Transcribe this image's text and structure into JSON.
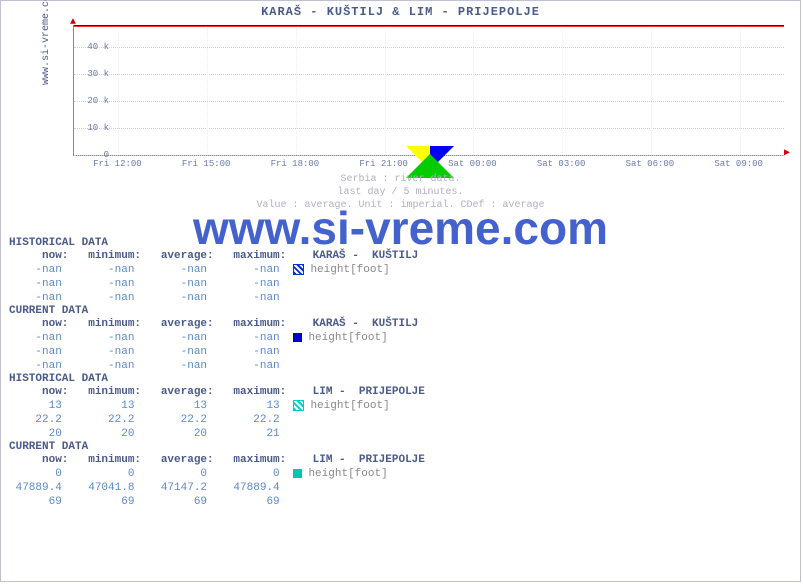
{
  "title": "KARAŠ -  KUŠTILJ &  LIM -  PRIJEPOLJE",
  "ylabel": "www.si-vreme.com",
  "watermark": "www.si-vreme.com",
  "chart": {
    "type": "line",
    "ylim": [
      0,
      48000
    ],
    "yticks": [
      {
        "v": 0,
        "label": "0"
      },
      {
        "v": 10000,
        "label": "10 k"
      },
      {
        "v": 20000,
        "label": "20 k"
      },
      {
        "v": 30000,
        "label": "30 k"
      },
      {
        "v": 40000,
        "label": "40 k"
      }
    ],
    "xticks": [
      "Fri 12:00",
      "Fri 15:00",
      "Fri 18:00",
      "Fri 21:00",
      "Sat 00:00",
      "Sat 03:00",
      "Sat 06:00",
      "Sat 09:00"
    ],
    "series": [
      {
        "name": "KARAŠ - KUŠTILJ",
        "color": "#0000ff",
        "y": 47889
      },
      {
        "name": "LIM - PRIJEPOLJE",
        "color": "#ff3333",
        "y": 47889
      }
    ],
    "grid_color": "#d0d0d0",
    "background_color": "#ffffff"
  },
  "subtitle": {
    "l1": "Serbia : river data.",
    "l2": "last day / 5 minutes.",
    "l3": "Value : average. Unit : imperial. CDef : average"
  },
  "sections": [
    {
      "title": "HISTORICAL DATA",
      "header": {
        "c1": "now:",
        "c2": "minimum:",
        "c3": "average:",
        "c4": "maximum:",
        "c5": "KARAŠ -  KUŠTILJ"
      },
      "rows": [
        {
          "c1": "-nan",
          "c2": "-nan",
          "c3": "-nan",
          "c4": "-nan",
          "marker": "#0033cc",
          "mstyle": "hatch",
          "label": "height[foot]"
        },
        {
          "c1": "-nan",
          "c2": "-nan",
          "c3": "-nan",
          "c4": "-nan"
        },
        {
          "c1": "-nan",
          "c2": "-nan",
          "c3": "-nan",
          "c4": "-nan"
        }
      ]
    },
    {
      "title": "CURRENT DATA",
      "header": {
        "c1": "now:",
        "c2": "minimum:",
        "c3": "average:",
        "c4": "maximum:",
        "c5": "KARAŠ -  KUŠTILJ"
      },
      "rows": [
        {
          "c1": "-nan",
          "c2": "-nan",
          "c3": "-nan",
          "c4": "-nan",
          "marker": "#0000cc",
          "mstyle": "solid",
          "label": "height[foot]"
        },
        {
          "c1": "-nan",
          "c2": "-nan",
          "c3": "-nan",
          "c4": "-nan"
        },
        {
          "c1": "-nan",
          "c2": "-nan",
          "c3": "-nan",
          "c4": "-nan"
        }
      ]
    },
    {
      "title": "HISTORICAL DATA",
      "header": {
        "c1": "now:",
        "c2": "minimum:",
        "c3": "average:",
        "c4": "maximum:",
        "c5": "LIM -  PRIJEPOLJE"
      },
      "rows": [
        {
          "c1": "13",
          "c2": "13",
          "c3": "13",
          "c4": "13",
          "marker": "#00cccc",
          "mstyle": "hatch",
          "label": "height[foot]"
        },
        {
          "c1": "22.2",
          "c2": "22.2",
          "c3": "22.2",
          "c4": "22.2"
        },
        {
          "c1": "20",
          "c2": "20",
          "c3": "20",
          "c4": "21"
        }
      ]
    },
    {
      "title": "CURRENT DATA",
      "header": {
        "c1": "now:",
        "c2": "minimum:",
        "c3": "average:",
        "c4": "maximum:",
        "c5": "LIM -  PRIJEPOLJE"
      },
      "rows": [
        {
          "c1": "0",
          "c2": "0",
          "c3": "0",
          "c4": "0",
          "marker": "#00c8b0",
          "mstyle": "solid",
          "label": "height[foot]"
        },
        {
          "c1": "47889.4",
          "c2": "47041.8",
          "c3": "47147.2",
          "c4": "47889.4"
        },
        {
          "c1": "69",
          "c2": "69",
          "c3": "69",
          "c4": "69"
        }
      ]
    }
  ],
  "logo_colors": {
    "left": "#ffff00",
    "right": "#0000ff",
    "bottom": "#00cc00"
  }
}
